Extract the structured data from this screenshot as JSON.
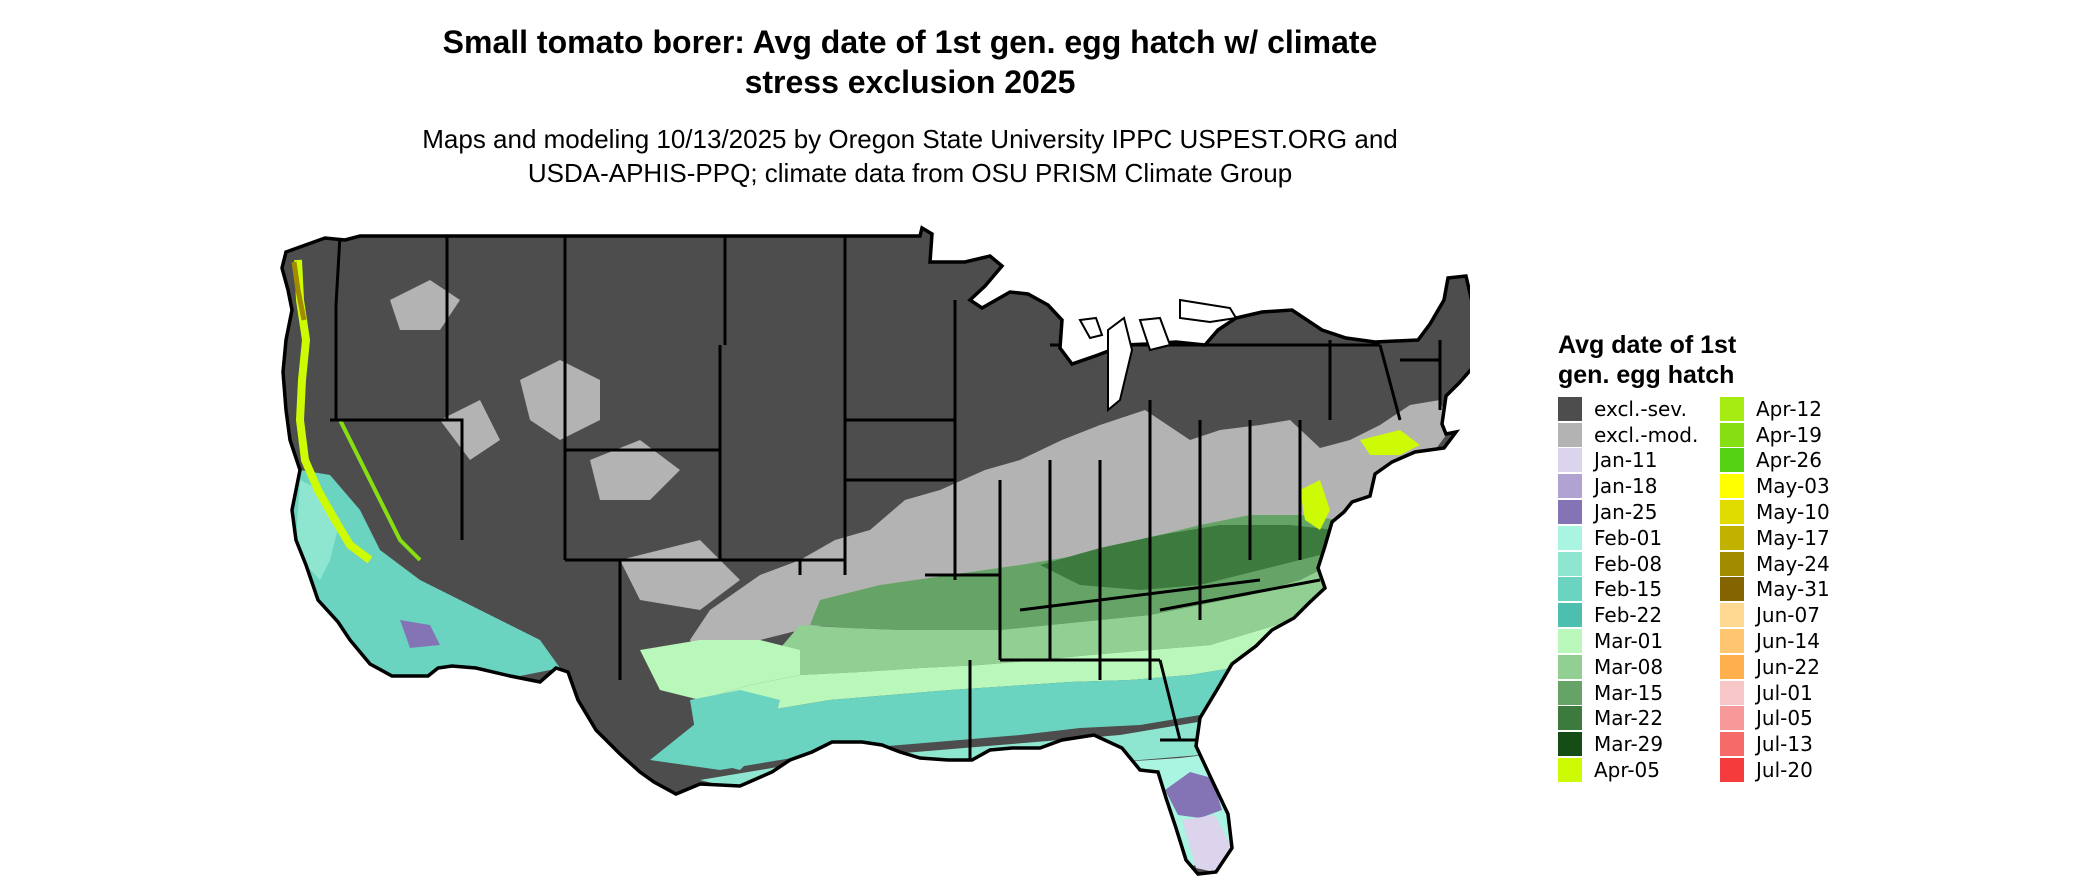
{
  "title": {
    "line1": "Small tomato borer: Avg date of 1st gen. egg hatch w/ climate",
    "line2": "stress exclusion 2025"
  },
  "subtitle": {
    "line1": "Maps and modeling 10/13/2025 by Oregon State University IPPC USPEST.ORG and",
    "line2": "USDA-APHIS-PPQ; climate data from OSU PRISM Climate Group"
  },
  "legend": {
    "title_line1": "Avg date of 1st",
    "title_line2": "gen. egg hatch",
    "items": [
      {
        "label": "excl.-sev.",
        "color": "#4d4d4d"
      },
      {
        "label": "excl.-mod.",
        "color": "#b3b3b3"
      },
      {
        "label": "Jan-11",
        "color": "#dcd3ec"
      },
      {
        "label": "Jan-18",
        "color": "#b1a3d1"
      },
      {
        "label": "Jan-25",
        "color": "#8574b5"
      },
      {
        "label": "Feb-01",
        "color": "#a9f5e2"
      },
      {
        "label": "Feb-08",
        "color": "#8ee6d1"
      },
      {
        "label": "Feb-15",
        "color": "#6bd4c0"
      },
      {
        "label": "Feb-22",
        "color": "#4cbfae"
      },
      {
        "label": "Mar-01",
        "color": "#b9f7ba"
      },
      {
        "label": "Mar-08",
        "color": "#92cf92"
      },
      {
        "label": "Mar-15",
        "color": "#65a466"
      },
      {
        "label": "Mar-22",
        "color": "#3d7a3e"
      },
      {
        "label": "Mar-29",
        "color": "#164d17"
      },
      {
        "label": "Apr-05",
        "color": "#cdfb05"
      },
      {
        "label": "Apr-12",
        "color": "#a6ec12"
      },
      {
        "label": "Apr-19",
        "color": "#86df12"
      },
      {
        "label": "Apr-26",
        "color": "#55d114"
      },
      {
        "label": "May-03",
        "color": "#ffff00"
      },
      {
        "label": "May-10",
        "color": "#e0dc00"
      },
      {
        "label": "May-17",
        "color": "#c2b200"
      },
      {
        "label": "May-24",
        "color": "#a38b00"
      },
      {
        "label": "May-31",
        "color": "#836400"
      },
      {
        "label": "Jun-07",
        "color": "#ffd992"
      },
      {
        "label": "Jun-14",
        "color": "#ffc66f"
      },
      {
        "label": "Jun-22",
        "color": "#ffb04c"
      },
      {
        "label": "Jul-01",
        "color": "#f7c6c6"
      },
      {
        "label": "Jul-05",
        "color": "#f79999"
      },
      {
        "label": "Jul-13",
        "color": "#f76a6a"
      },
      {
        "label": "Jul-20",
        "color": "#f53b3b"
      }
    ]
  }
}
